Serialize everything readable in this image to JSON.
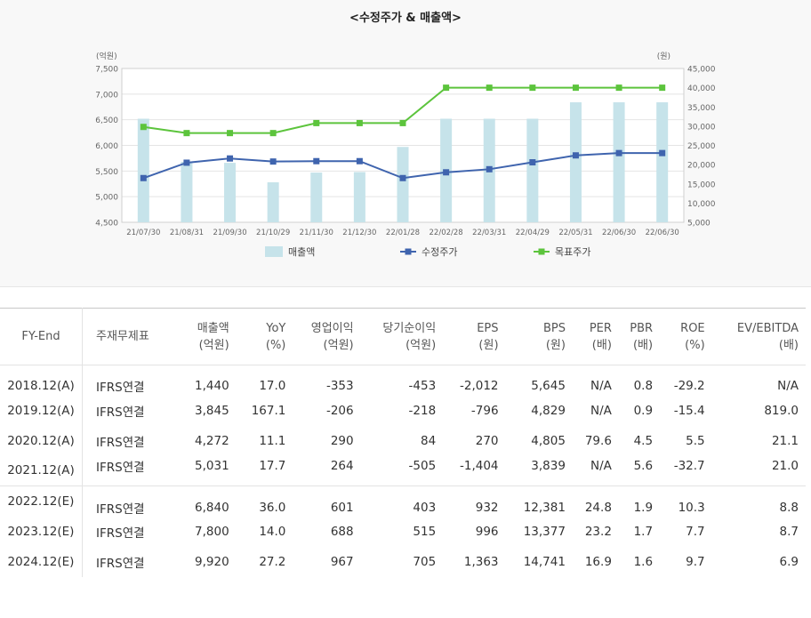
{
  "title": "<수정주가 & 매출액>",
  "chart_data": {
    "type": "bar+line",
    "categories": [
      "21/07/30",
      "21/08/31",
      "21/09/30",
      "21/10/29",
      "21/11/30",
      "21/12/30",
      "22/01/28",
      "22/02/28",
      "22/03/31",
      "22/04/29",
      "22/05/31",
      "22/06/30",
      "22/06/30"
    ],
    "left_axis": {
      "unit": "(억원)",
      "ylim": [
        4500,
        7500
      ],
      "ticks": [
        "4,500",
        "5,000",
        "5,500",
        "6,000",
        "6,500",
        "7,000",
        "7,500"
      ],
      "tick_values": [
        4500,
        5000,
        5500,
        6000,
        6500,
        7000,
        7500
      ]
    },
    "right_axis": {
      "unit": "(원)",
      "ylim": [
        5000,
        45000
      ],
      "ticks": [
        "5,000",
        "10,000",
        "15,000",
        "20,000",
        "25,000",
        "30,000",
        "35,000",
        "40,000",
        "45,000"
      ],
      "tick_values": [
        5000,
        10000,
        15000,
        20000,
        25000,
        30000,
        35000,
        40000,
        45000
      ]
    },
    "series": [
      {
        "name": "매출액",
        "type": "bar",
        "axis": "left",
        "color": "#c6e3ea",
        "values": [
          6520,
          5680,
          5660,
          5280,
          5470,
          5480,
          5970,
          6520,
          6520,
          6520,
          6840,
          6840,
          6840
        ]
      },
      {
        "name": "수정주가",
        "type": "line",
        "axis": "right",
        "color": "#3f64ae",
        "values": [
          16500,
          20500,
          21600,
          20800,
          20900,
          20900,
          16500,
          18000,
          18800,
          20600,
          22400,
          23000,
          23000
        ]
      },
      {
        "name": "목표주가",
        "type": "line",
        "axis": "right",
        "color": "#5cc43c",
        "values": [
          29800,
          28200,
          28200,
          28200,
          30800,
          30800,
          30800,
          40000,
          40000,
          40000,
          40000,
          40000,
          40000
        ]
      }
    ],
    "legend_position": "bottom",
    "grid": true
  },
  "table": {
    "headers": [
      {
        "l1": "FY-End",
        "l2": ""
      },
      {
        "l1": "주재무제표",
        "l2": ""
      },
      {
        "l1": "매출액",
        "l2": "(억원)"
      },
      {
        "l1": "YoY",
        "l2": "(%)"
      },
      {
        "l1": "영업이익",
        "l2": "(억원)"
      },
      {
        "l1": "당기순이익",
        "l2": "(억원)"
      },
      {
        "l1": "EPS",
        "l2": "(원)"
      },
      {
        "l1": "BPS",
        "l2": "(원)"
      },
      {
        "l1": "PER",
        "l2": "(배)"
      },
      {
        "l1": "PBR",
        "l2": "(배)"
      },
      {
        "l1": "ROE",
        "l2": "(%)"
      },
      {
        "l1": "EV/EBITDA",
        "l2": "(배)"
      }
    ],
    "actual_rows": [
      [
        "2018.12(A)",
        "IFRS연결",
        "1,440",
        "17.0",
        "-353",
        "-453",
        "-2,012",
        "5,645",
        "N/A",
        "0.8",
        "-29.2",
        "N/A"
      ],
      [
        "2019.12(A)",
        "IFRS연결",
        "3,845",
        "167.1",
        "-206",
        "-218",
        "-796",
        "4,829",
        "N/A",
        "0.9",
        "-15.4",
        "819.0"
      ],
      [
        "2020.12(A)",
        "IFRS연결",
        "4,272",
        "11.1",
        "290",
        "84",
        "270",
        "4,805",
        "79.6",
        "4.5",
        "5.5",
        "21.1"
      ],
      [
        "2021.12(A)",
        "IFRS연결",
        "5,031",
        "17.7",
        "264",
        "-505",
        "-1,404",
        "3,839",
        "N/A",
        "5.6",
        "-32.7",
        "21.0"
      ]
    ],
    "estimate_rows": [
      [
        "2022.12(E)",
        "IFRS연결",
        "6,840",
        "36.0",
        "601",
        "403",
        "932",
        "12,381",
        "24.8",
        "1.9",
        "10.3",
        "8.8"
      ],
      [
        "2023.12(E)",
        "IFRS연결",
        "7,800",
        "14.0",
        "688",
        "515",
        "996",
        "13,377",
        "23.2",
        "1.7",
        "7.7",
        "8.7"
      ],
      [
        "2024.12(E)",
        "IFRS연결",
        "9,920",
        "27.2",
        "967",
        "705",
        "1,363",
        "14,741",
        "16.9",
        "1.6",
        "9.7",
        "6.9"
      ]
    ]
  }
}
